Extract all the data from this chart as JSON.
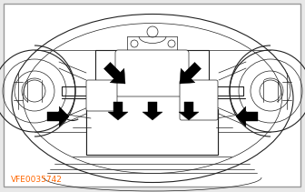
{
  "bg_color": "#e8e8e8",
  "image_bg": "#ffffff",
  "label_text": "VFE0035742",
  "label_color": "#ff6600",
  "label_fontsize": 6.5,
  "fig_width": 3.36,
  "fig_height": 2.11,
  "dpi": 100,
  "ec": "#222222",
  "lw_thin": 0.5,
  "lw_med": 0.8,
  "lw_thick": 1.4,
  "lw_arrow": 2.0
}
